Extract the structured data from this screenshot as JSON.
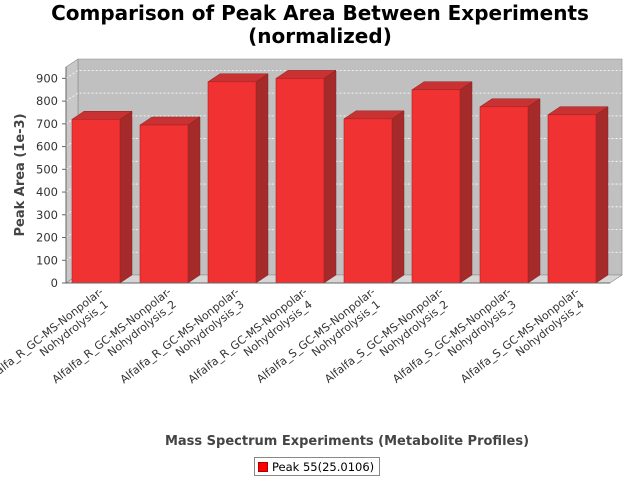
{
  "chart_data": {
    "type": "bar",
    "title_line1": "Comparison of Peak Area Between Experiments",
    "title_line2": "(normalized)",
    "xlabel": "Mass Spectrum Experiments (Metabolite Profiles)",
    "ylabel": "Peak Area (1e-3)",
    "ylim": [
      0,
      950
    ],
    "yticks": [
      0,
      100,
      200,
      300,
      400,
      500,
      600,
      700,
      800,
      900
    ],
    "grid": true,
    "legend_placement": "bottom-center",
    "categories": [
      [
        "Alfalfa_R_GC-MS-Nonpolar-",
        "Nohydrolysis_1"
      ],
      [
        "Alfalfa_R_GC-MS-Nonpolar-",
        "Nohydrolysis_2"
      ],
      [
        "Alfalfa_R_GC-MS-Nonpolar-",
        "Nohydrolysis_3"
      ],
      [
        "Alfalfa_R_GC-MS-Nonpolar-",
        "Nohydrolysis_4"
      ],
      [
        "Alfalfa_S_GC-MS-Nonpolar-",
        "Nohydrolysis_1"
      ],
      [
        "Alfalfa_S_GC-MS-Nonpolar-",
        "Nohydrolysis_2"
      ],
      [
        "Alfalfa_S_GC-MS-Nonpolar-",
        "Nohydrolysis_3"
      ],
      [
        "Alfalfa_S_GC-MS-Nonpolar-",
        "Nohydrolysis_4"
      ]
    ],
    "series": [
      {
        "name": "Peak 55(25.0106)",
        "color": "#ff0000",
        "values": [
          720,
          695,
          885,
          900,
          722,
          850,
          775,
          740
        ]
      }
    ]
  }
}
